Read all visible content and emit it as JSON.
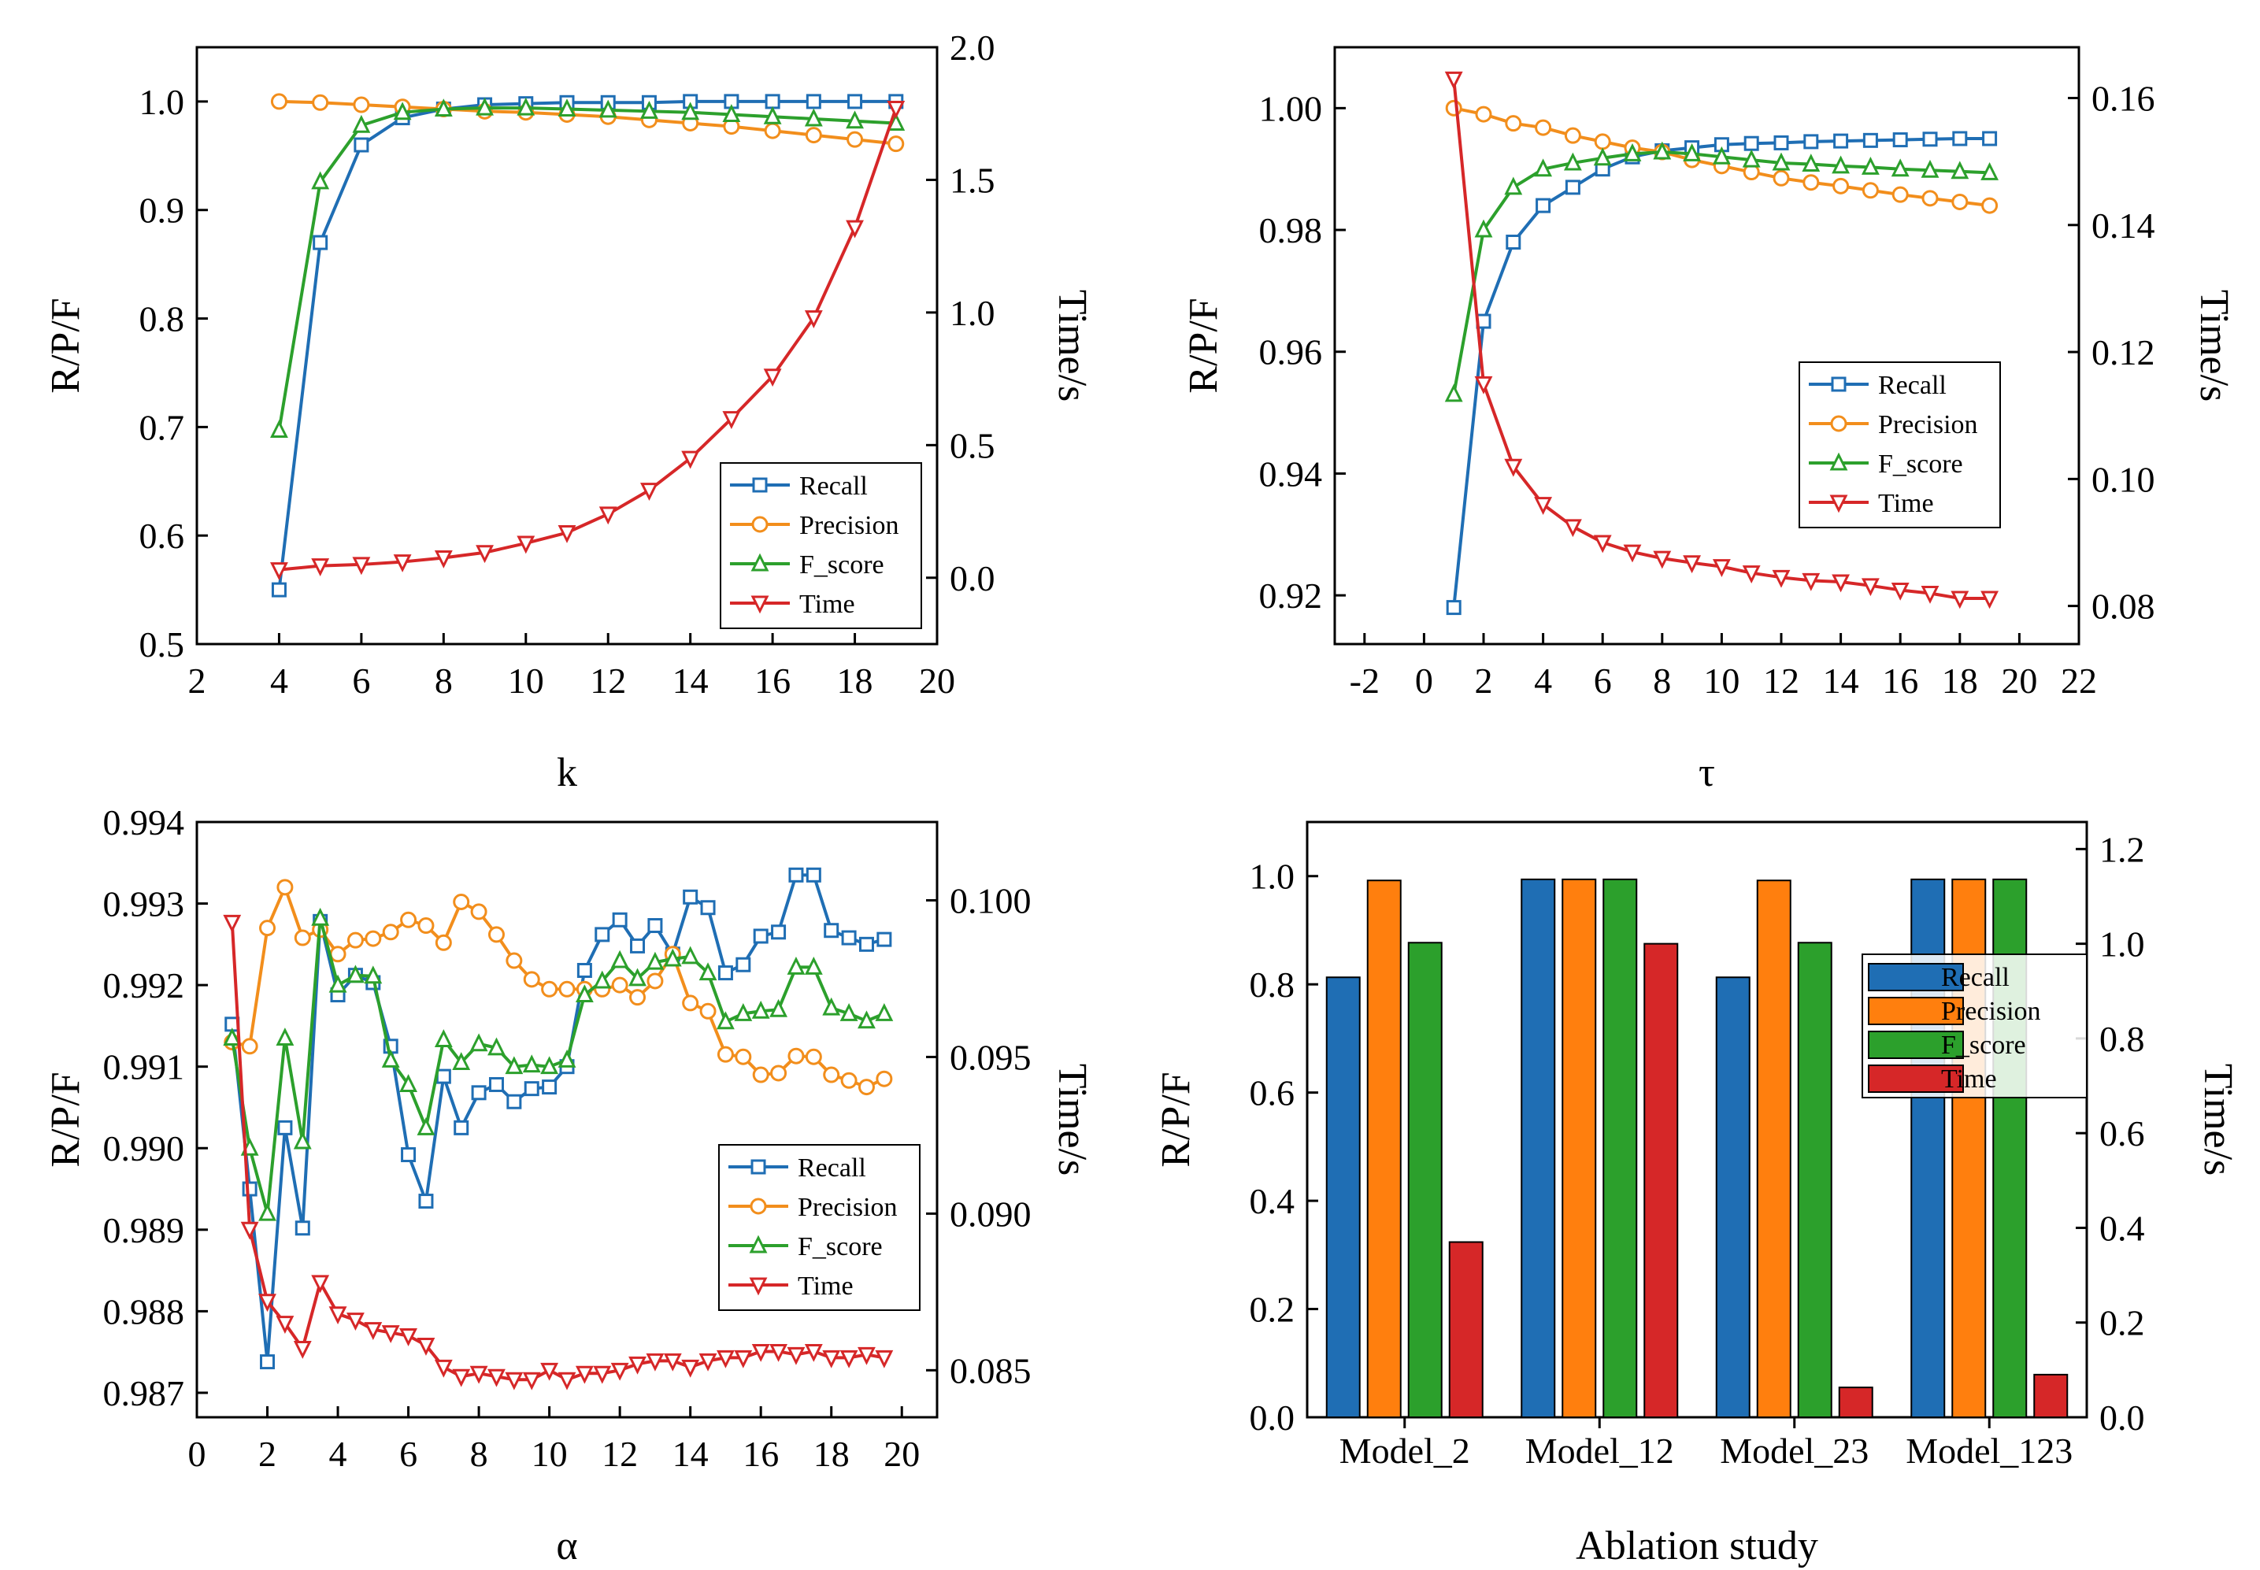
{
  "chart_data": [
    {
      "type": "line",
      "xlabel": "k",
      "ylabel": "R/P/F",
      "y2label": "Time/s",
      "xlim": [
        2,
        20
      ],
      "ylim": [
        0.5,
        1.05
      ],
      "y2lim": [
        -0.25,
        2.0
      ],
      "xticks": [
        "2",
        "4",
        "6",
        "8",
        "10",
        "12",
        "14",
        "16",
        "18",
        "20"
      ],
      "yticks": [
        "0.5",
        "0.6",
        "0.7",
        "0.8",
        "0.9",
        "1.0"
      ],
      "y2ticks": [
        "0.0",
        "0.5",
        "1.0",
        "1.5",
        "2.0"
      ],
      "legend_position": "lower-right",
      "x": [
        4,
        5,
        6,
        7,
        8,
        9,
        10,
        11,
        12,
        13,
        14,
        15,
        16,
        17,
        18,
        19
      ],
      "series": [
        {
          "name": "Recall",
          "axis": "left",
          "color": "#1f6eb4",
          "marker": "square",
          "values": [
            0.55,
            0.87,
            0.96,
            0.985,
            0.993,
            0.997,
            0.998,
            0.999,
            0.999,
            0.999,
            1.0,
            1.0,
            1.0,
            1.0,
            1.0,
            1.0
          ]
        },
        {
          "name": "Precision",
          "axis": "left",
          "color": "#f28e1c",
          "marker": "circle",
          "values": [
            1.0,
            0.999,
            0.997,
            0.995,
            0.993,
            0.991,
            0.99,
            0.988,
            0.986,
            0.983,
            0.98,
            0.977,
            0.973,
            0.969,
            0.965,
            0.961
          ]
        },
        {
          "name": "F_score",
          "axis": "left",
          "color": "#2ca02c",
          "marker": "triangle",
          "values": [
            0.697,
            0.926,
            0.978,
            0.99,
            0.993,
            0.994,
            0.994,
            0.993,
            0.992,
            0.991,
            0.99,
            0.988,
            0.986,
            0.984,
            0.982,
            0.98
          ]
        },
        {
          "name": "Time",
          "axis": "right",
          "color": "#d62728",
          "marker": "triangle-down",
          "values": [
            0.03,
            0.045,
            0.05,
            0.06,
            0.075,
            0.095,
            0.13,
            0.17,
            0.24,
            0.33,
            0.45,
            0.6,
            0.76,
            0.98,
            1.32,
            1.77
          ]
        }
      ]
    },
    {
      "type": "line",
      "xlabel": "τ",
      "ylabel": "R/P/F",
      "y2label": "Time/s",
      "xlim": [
        -3,
        22
      ],
      "ylim": [
        0.912,
        1.01
      ],
      "y2lim": [
        0.074,
        0.168
      ],
      "xticks": [
        "-2",
        "0",
        "2",
        "4",
        "6",
        "8",
        "10",
        "12",
        "14",
        "16",
        "18",
        "20",
        "22"
      ],
      "yticks": [
        "0.92",
        "0.94",
        "0.96",
        "0.98",
        "1.00"
      ],
      "y2ticks": [
        "0.08",
        "0.10",
        "0.12",
        "0.14",
        "0.16"
      ],
      "legend_position": "right",
      "x": [
        1,
        2,
        3,
        4,
        5,
        6,
        7,
        8,
        9,
        10,
        11,
        12,
        13,
        14,
        15,
        16,
        17,
        18,
        19
      ],
      "series": [
        {
          "name": "Recall",
          "axis": "left",
          "color": "#1f6eb4",
          "marker": "square",
          "values": [
            0.918,
            0.965,
            0.978,
            0.984,
            0.987,
            0.99,
            0.992,
            0.993,
            0.9935,
            0.994,
            0.9942,
            0.9943,
            0.9945,
            0.9946,
            0.9947,
            0.9948,
            0.9949,
            0.995,
            0.995
          ]
        },
        {
          "name": "Precision",
          "axis": "left",
          "color": "#f28e1c",
          "marker": "circle",
          "values": [
            1.0,
            0.999,
            0.9975,
            0.9968,
            0.9955,
            0.9945,
            0.9935,
            0.9928,
            0.9915,
            0.9905,
            0.9895,
            0.9885,
            0.9878,
            0.9872,
            0.9865,
            0.9858,
            0.9852,
            0.9846,
            0.984
          ]
        },
        {
          "name": "F_score",
          "axis": "left",
          "color": "#2ca02c",
          "marker": "triangle",
          "values": [
            0.953,
            0.98,
            0.987,
            0.99,
            0.991,
            0.9918,
            0.9925,
            0.9928,
            0.9925,
            0.992,
            0.9915,
            0.991,
            0.9908,
            0.9905,
            0.9903,
            0.99,
            0.9898,
            0.9896,
            0.9894
          ]
        },
        {
          "name": "Time",
          "axis": "right",
          "color": "#d62728",
          "marker": "triangle-down",
          "values": [
            0.163,
            0.115,
            0.102,
            0.096,
            0.0925,
            0.09,
            0.0885,
            0.0875,
            0.0868,
            0.0862,
            0.0852,
            0.0845,
            0.084,
            0.0838,
            0.0832,
            0.0825,
            0.082,
            0.0812,
            0.0812
          ]
        }
      ]
    },
    {
      "type": "line",
      "xlabel": "α",
      "ylabel": "R/P/F",
      "y2label": "Time/s",
      "xlim": [
        0,
        21
      ],
      "ylim": [
        0.9867,
        0.994
      ],
      "y2lim": [
        0.0835,
        0.1025
      ],
      "xticks": [
        "0",
        "2",
        "4",
        "6",
        "8",
        "10",
        "12",
        "14",
        "16",
        "18",
        "20"
      ],
      "yticks": [
        "0.987",
        "0.988",
        "0.989",
        "0.990",
        "0.991",
        "0.992",
        "0.993",
        "0.994"
      ],
      "y2ticks": [
        "0.085",
        "0.090",
        "0.095",
        "0.100"
      ],
      "legend_position": "lower-right",
      "x": [
        1,
        1.5,
        2,
        2.5,
        3,
        3.5,
        4,
        4.5,
        5,
        5.5,
        6,
        6.5,
        7,
        7.5,
        8,
        8.5,
        9,
        9.5,
        10,
        10.5,
        11,
        11.5,
        12,
        12.5,
        13,
        13.5,
        14,
        14.5,
        15,
        15.5,
        16,
        16.5,
        17,
        17.5,
        18,
        18.5,
        19,
        19.5
      ],
      "series": [
        {
          "name": "Recall",
          "axis": "left",
          "color": "#1f6eb4",
          "marker": "square",
          "values": [
            0.99152,
            0.9895,
            0.98738,
            0.99025,
            0.98902,
            0.99278,
            0.99188,
            0.99212,
            0.99203,
            0.99125,
            0.98992,
            0.98935,
            0.99088,
            0.99025,
            0.99068,
            0.99078,
            0.99057,
            0.99073,
            0.99075,
            0.991,
            0.99218,
            0.99262,
            0.9928,
            0.99248,
            0.99273,
            0.99238,
            0.99308,
            0.99295,
            0.99215,
            0.99225,
            0.9926,
            0.99265,
            0.99335,
            0.99335,
            0.99267,
            0.99258,
            0.9925,
            0.99256
          ]
        },
        {
          "name": "Precision",
          "axis": "left",
          "color": "#f28e1c",
          "marker": "circle",
          "values": [
            0.9913,
            0.99125,
            0.9927,
            0.9932,
            0.99258,
            0.99268,
            0.99238,
            0.99255,
            0.99257,
            0.99265,
            0.9928,
            0.99273,
            0.99252,
            0.99302,
            0.9929,
            0.99262,
            0.9923,
            0.99207,
            0.99195,
            0.99195,
            0.99195,
            0.99195,
            0.992,
            0.99185,
            0.99205,
            0.99238,
            0.99178,
            0.99168,
            0.99115,
            0.99112,
            0.9909,
            0.99092,
            0.99113,
            0.99112,
            0.9909,
            0.99083,
            0.99075,
            0.99085
          ]
        },
        {
          "name": "F_score",
          "axis": "left",
          "color": "#2ca02c",
          "marker": "triangle",
          "values": [
            0.99135,
            0.99,
            0.9892,
            0.99135,
            0.99008,
            0.99282,
            0.992,
            0.99212,
            0.99211,
            0.99108,
            0.99078,
            0.99025,
            0.99133,
            0.99105,
            0.99128,
            0.99123,
            0.991,
            0.99102,
            0.991,
            0.99108,
            0.99188,
            0.99205,
            0.9923,
            0.99208,
            0.99228,
            0.99232,
            0.99235,
            0.99215,
            0.99155,
            0.99165,
            0.99168,
            0.9917,
            0.99222,
            0.99222,
            0.99172,
            0.99165,
            0.99156,
            0.99165
          ]
        },
        {
          "name": "Time",
          "axis": "right",
          "color": "#d62728",
          "marker": "triangle-down",
          "values": [
            0.0993,
            0.0895,
            0.0872,
            0.0865,
            0.0857,
            0.0878,
            0.0868,
            0.0866,
            0.0863,
            0.0862,
            0.0861,
            0.0858,
            0.0851,
            0.0848,
            0.0849,
            0.0848,
            0.0847,
            0.0847,
            0.085,
            0.0847,
            0.0849,
            0.0849,
            0.085,
            0.0852,
            0.0853,
            0.0853,
            0.0851,
            0.0853,
            0.0854,
            0.0854,
            0.0856,
            0.0856,
            0.0855,
            0.0856,
            0.0854,
            0.0854,
            0.0855,
            0.0854
          ]
        }
      ]
    },
    {
      "type": "bar",
      "xlabel": "Ablation study",
      "ylabel": "R/P/F",
      "y2label": "Time/s",
      "ylim": [
        0.0,
        1.1
      ],
      "y2lim": [
        0.0,
        1.2571
      ],
      "yticks": [
        "0.0",
        "0.2",
        "0.4",
        "0.6",
        "0.8",
        "1.0"
      ],
      "y2ticks": [
        "0.0",
        "0.2",
        "0.4",
        "0.6",
        "0.8",
        "1.0",
        "1.2"
      ],
      "legend_position": "upper-right",
      "categories": [
        "Model_2",
        "Model_12",
        "Model_23",
        "Model_123"
      ],
      "series": [
        {
          "name": "Recall",
          "axis": "left",
          "color": "#1f6eb4",
          "values": [
            0.813,
            0.994,
            0.813,
            0.994
          ]
        },
        {
          "name": "Precision",
          "axis": "left",
          "color": "#ff7f0e",
          "values": [
            0.992,
            0.994,
            0.992,
            0.994
          ]
        },
        {
          "name": "F_score",
          "axis": "left",
          "color": "#2ca02c",
          "values": [
            0.877,
            0.994,
            0.877,
            0.994
          ]
        },
        {
          "name": "Time",
          "axis": "right",
          "color": "#d62728",
          "values": [
            0.37,
            1.0,
            0.063,
            0.09
          ]
        }
      ]
    }
  ]
}
